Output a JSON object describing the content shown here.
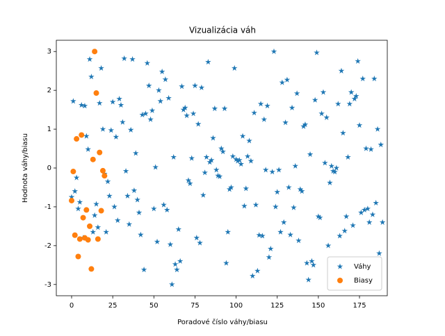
{
  "chart_data": {
    "type": "scatter",
    "title": "Vizualizácia váh",
    "xlabel": "Poradové číslo váhy/biasu",
    "ylabel": "Hodnota váhy/biasu",
    "xlim": [
      -9.3,
      191.9
    ],
    "ylim": [
      -3.29,
      3.29
    ],
    "xticks": [
      0,
      25,
      50,
      75,
      100,
      125,
      150,
      175
    ],
    "yticks": [
      -3,
      -2,
      -1,
      0,
      1,
      2,
      3
    ],
    "legend": "lower right",
    "series": [
      {
        "name": "Váhy",
        "color": "#1f77b4",
        "marker": "star",
        "x": [
          0,
          1,
          2,
          3,
          4,
          5,
          6,
          7,
          8,
          9,
          10,
          11,
          12,
          13,
          14,
          15,
          16,
          17,
          18,
          19,
          20,
          21,
          22,
          23,
          24,
          25,
          26,
          27,
          28,
          29,
          30,
          31,
          32,
          33,
          34,
          35,
          36,
          37,
          38,
          39,
          40,
          41,
          42,
          43,
          44,
          45,
          46,
          47,
          48,
          49,
          50,
          51,
          52,
          53,
          54,
          55,
          56,
          57,
          58,
          59,
          60,
          61,
          62,
          63,
          64,
          65,
          66,
          67,
          68,
          69,
          70,
          71,
          72,
          73,
          74,
          75,
          76,
          77,
          78,
          79,
          80,
          81,
          82,
          83,
          84,
          85,
          86,
          87,
          88,
          89,
          90,
          91,
          92,
          93,
          94,
          95,
          96,
          97,
          98,
          99,
          100,
          101,
          102,
          103,
          104,
          105,
          106,
          107,
          108,
          109,
          110,
          111,
          112,
          113,
          114,
          115,
          116,
          117,
          118,
          119,
          120,
          121,
          122,
          123,
          124,
          125,
          126,
          127,
          128,
          129,
          130,
          131,
          132,
          133,
          134,
          135,
          136,
          137,
          138,
          139,
          140,
          141,
          142,
          143,
          144,
          145,
          146,
          147,
          148,
          149,
          150,
          151,
          152,
          153,
          154,
          155,
          156,
          157,
          158,
          159,
          160,
          161,
          162,
          163,
          164,
          165,
          166,
          167,
          168,
          169,
          170,
          171,
          172,
          173,
          174,
          175,
          176,
          177,
          178,
          179,
          180,
          181,
          182,
          183,
          184,
          185,
          186,
          187,
          188,
          189
        ],
        "values": [
          -0.75,
          1.72,
          -0.6,
          -0.25,
          -1.05,
          -0.88,
          1.62,
          -1.8,
          1.6,
          0.82,
          0.48,
          2.8,
          2.35,
          -1.65,
          -1.22,
          -0.93,
          -1.53,
          1.67,
          2.57,
          1.0,
          -0.15,
          -1.65,
          -0.35,
          -0.72,
          0.97,
          1.7,
          -1.0,
          0.8,
          -1.35,
          1.78,
          1.62,
          1.18,
          2.82,
          -0.08,
          -0.72,
          -1.45,
          0.98,
          2.8,
          -0.58,
          0.38,
          -0.82,
          -1.15,
          -1.72,
          1.37,
          -2.62,
          1.4,
          2.7,
          2.12,
          1.25,
          1.48,
          -1.05,
          0.02,
          -1.9,
          2.0,
          1.72,
          2.48,
          -0.95,
          2.28,
          -1.08,
          1.8,
          -1.97,
          -3.0,
          0.28,
          -2.48,
          -2.62,
          -1.58,
          -2.4,
          2.1,
          1.5,
          1.55,
          1.35,
          -0.32,
          -0.4,
          0.25,
          1.4,
          2.12,
          -1.8,
          1.13,
          -1.93,
          2.07,
          -0.7,
          -0.12,
          0.28,
          2.73,
          0.15,
          0.2,
          0.77,
          1.53,
          -0.05,
          -0.2,
          -0.22,
          0.5,
          0.42,
          1.53,
          -2.45,
          -1.65,
          -0.55,
          -0.5,
          0.3,
          2.57,
          0.22,
          0.18,
          0.2,
          0.1,
          0.82,
          -0.98,
          -0.53,
          0.3,
          0.7,
          0.18,
          -2.78,
          1.42,
          -0.95,
          -2.65,
          -1.73,
          1.65,
          -1.75,
          1.25,
          -0.05,
          1.6,
          -2.3,
          -2.08,
          -0.1,
          3.0,
          -1.0,
          -0.62,
          -0.05,
          -1.65,
          2.2,
          -1.4,
          1.17,
          2.27,
          -0.5,
          -1.72,
          1.55,
          -1.02,
          0.05,
          1.92,
          -1.87,
          -0.55,
          -0.6,
          1.07,
          1.12,
          -2.45,
          -2.88,
          0.35,
          -2.4,
          -2.5,
          1.75,
          2.97,
          -1.25,
          -1.28,
          1.4,
          1.95,
          0.13,
          1.3,
          -2.0,
          -0.38,
          0.05,
          -0.08,
          -0.1,
          0.0,
          1.65,
          -1.75,
          2.5,
          0.9,
          -1.62,
          -1.25,
          0.28,
          1.65,
          1.95,
          -1.48,
          1.78,
          1.85,
          2.75,
          1.1,
          -1.15,
          2.3,
          -1.08,
          0.5,
          -1.05,
          -1.4,
          0.48,
          -1.2,
          2.3,
          -0.9,
          1.0,
          -2.2,
          0.6,
          -1.4
        ]
      },
      {
        "name": "Biasy",
        "color": "#ff7f0e",
        "marker": "circle",
        "x": [
          0,
          1,
          2,
          3,
          4,
          5,
          6,
          7,
          8,
          9,
          10,
          11,
          12,
          13,
          14,
          15,
          16,
          17,
          18,
          19,
          20
        ],
        "values": [
          -0.84,
          -0.09,
          -1.73,
          0.75,
          -2.28,
          -1.83,
          0.85,
          -1.28,
          -1.8,
          -1.08,
          -1.85,
          -1.5,
          -2.6,
          0.22,
          3.0,
          1.93,
          -1.83,
          0.4,
          -1.1,
          -0.07,
          -0.2
        ]
      }
    ]
  }
}
